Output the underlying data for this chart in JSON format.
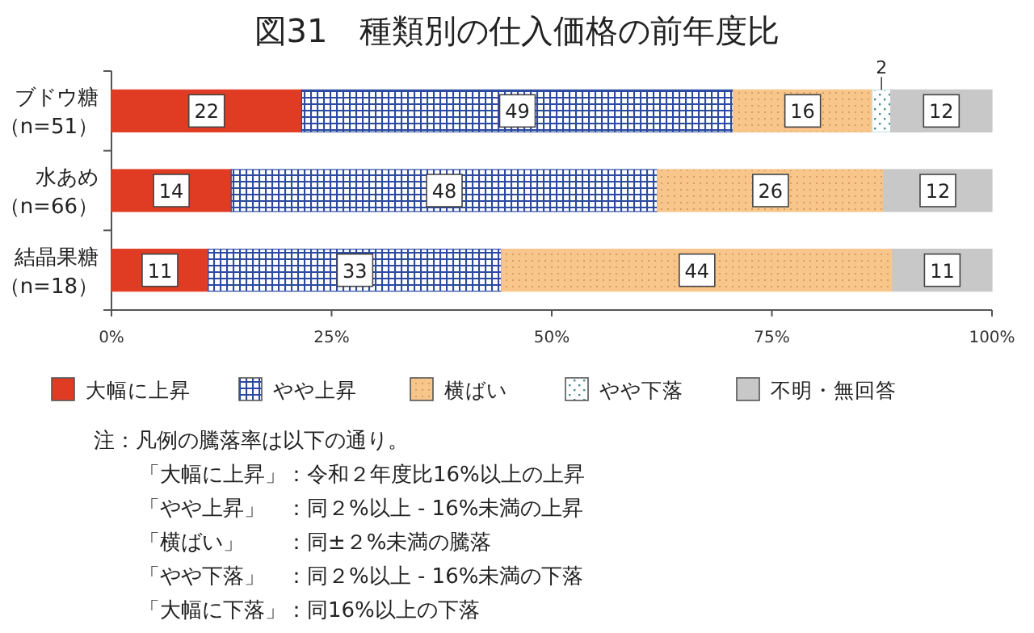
{
  "chart_data": {
    "type": "bar",
    "orientation": "horizontal",
    "stacked": true,
    "title": "図31　種類別の仕入価格の前年度比",
    "categories": [
      "ブドウ糖（n=51）",
      "水あめ（n=66）",
      "結晶果糖（n=18）"
    ],
    "series": [
      {
        "name": "大幅に上昇",
        "color": "#e03c24",
        "values": [
          21.6,
          13.6,
          11
        ],
        "value_labels": [
          "22",
          "14",
          "11"
        ]
      },
      {
        "name": "やや上昇",
        "color": "#2b4aa0",
        "values": [
          49,
          48.4,
          33.3
        ],
        "value_labels": [
          "49",
          "48",
          "33"
        ]
      },
      {
        "name": "横ばい",
        "color": "#f8c58a",
        "values": [
          15.8,
          25.7,
          44.4
        ],
        "value_labels": [
          "16",
          "26",
          "44"
        ]
      },
      {
        "name": "やや下落",
        "color": "#cfe6e6",
        "values": [
          2.1,
          null,
          null
        ],
        "value_labels": [
          "2",
          null,
          null
        ]
      },
      {
        "name": "不明・無回答",
        "color": "#c8c8c8",
        "values": [
          11.5,
          12.3,
          11.3
        ],
        "value_labels": [
          "12",
          "12",
          "11"
        ]
      }
    ],
    "xlim": [
      0,
      100
    ],
    "xticks": [
      {
        "value": 0,
        "label": "0%"
      },
      {
        "value": 25,
        "label": "25%"
      },
      {
        "value": 50,
        "label": "50%"
      },
      {
        "value": 75,
        "label": "75%"
      },
      {
        "value": 100,
        "label": "100%"
      }
    ],
    "grid": false,
    "legend": "bottom",
    "annotations": [
      "注：凡例の騰落率は以下の通り。",
      "「大幅に上昇」：令和２年度比16%以上の上昇",
      "「やや上昇」　：同２%以上 - 16%未満の上昇",
      "「横ばい」　　：同±２%未満の騰落",
      "「やや下落」　：同２%以上 - 16%未満の下落",
      "「大幅に下落」：同16%以上の下落"
    ]
  }
}
